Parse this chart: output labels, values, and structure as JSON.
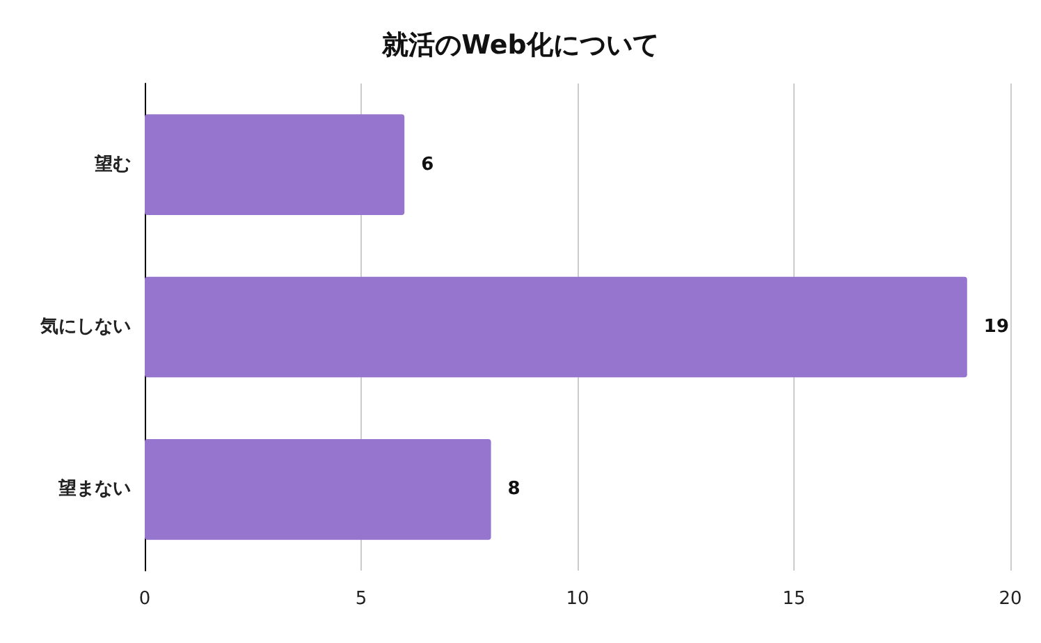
{
  "chart_data": {
    "type": "bar",
    "title": "就活のWeb化について",
    "orientation": "horizontal",
    "categories": [
      "望む",
      "気にしない",
      "望まない"
    ],
    "values": [
      6,
      19,
      8
    ],
    "color": "#9575cd",
    "xlim": [
      0,
      20
    ],
    "xticks": [
      0,
      5,
      10,
      15,
      20
    ],
    "grid": "x",
    "data_labels": true
  }
}
